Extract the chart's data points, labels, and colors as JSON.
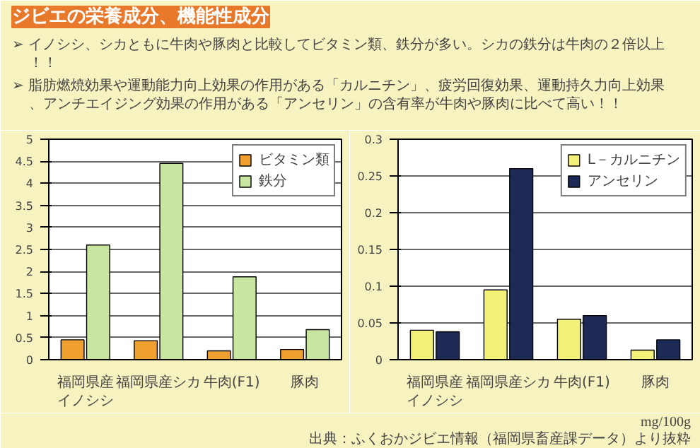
{
  "chart_data": [
    {
      "type": "bar",
      "title": "ジビエの栄養成分、機能性成分",
      "annotations": [
        "➢ イノシシ、シカともに牛肉や豚肉と比較してビタミン類、鉄分が多い。シカの鉄分は牛肉の２倍以上！！",
        "➢ 脂肪燃焼効果や運動能力向上効果の作用がある「カルニチン」、疲労回復効果、運動持久力向上効果、アンチエイジング効果の作用がある「アンセリン」の含有率が牛肉や豚肉に比べて高い！！"
      ],
      "categories": [
        "福岡県産イノシシ",
        "福岡県産シカ",
        "牛肉(F1)",
        "豚肉"
      ],
      "series": [
        {
          "name": "ビタミン類",
          "color": "#f0a030",
          "values": [
            0.45,
            0.43,
            0.2,
            0.23
          ]
        },
        {
          "name": "鉄分",
          "color": "#c8e6a0",
          "values": [
            2.6,
            4.45,
            1.88,
            0.68
          ]
        }
      ],
      "ylim": [
        0,
        5
      ],
      "yticks": [
        0,
        0.5,
        1,
        1.5,
        2,
        2.5,
        3,
        3.5,
        4,
        4.5,
        5
      ],
      "grid": "y",
      "legend": "top right"
    },
    {
      "type": "bar",
      "annotations": [
        "mg/100g",
        "出典：ふくおかジビエ情報（福岡県畜産課データ）より抜粋"
      ],
      "categories": [
        "福岡県産イノシシ",
        "福岡県産シカ",
        "牛肉(F1)",
        "豚肉"
      ],
      "series": [
        {
          "name": "L－カルニチン",
          "color": "#f5f07a",
          "values": [
            0.04,
            0.095,
            0.055,
            0.013
          ]
        },
        {
          "name": "アンセリン",
          "color": "#1c2a55",
          "values": [
            0.038,
            0.26,
            0.06,
            0.027
          ]
        }
      ],
      "ylim": [
        0,
        0.3
      ],
      "yticks": [
        0,
        0.05,
        0.1,
        0.15,
        0.2,
        0.25,
        0.3
      ],
      "grid": "y",
      "legend": "top right"
    }
  ]
}
